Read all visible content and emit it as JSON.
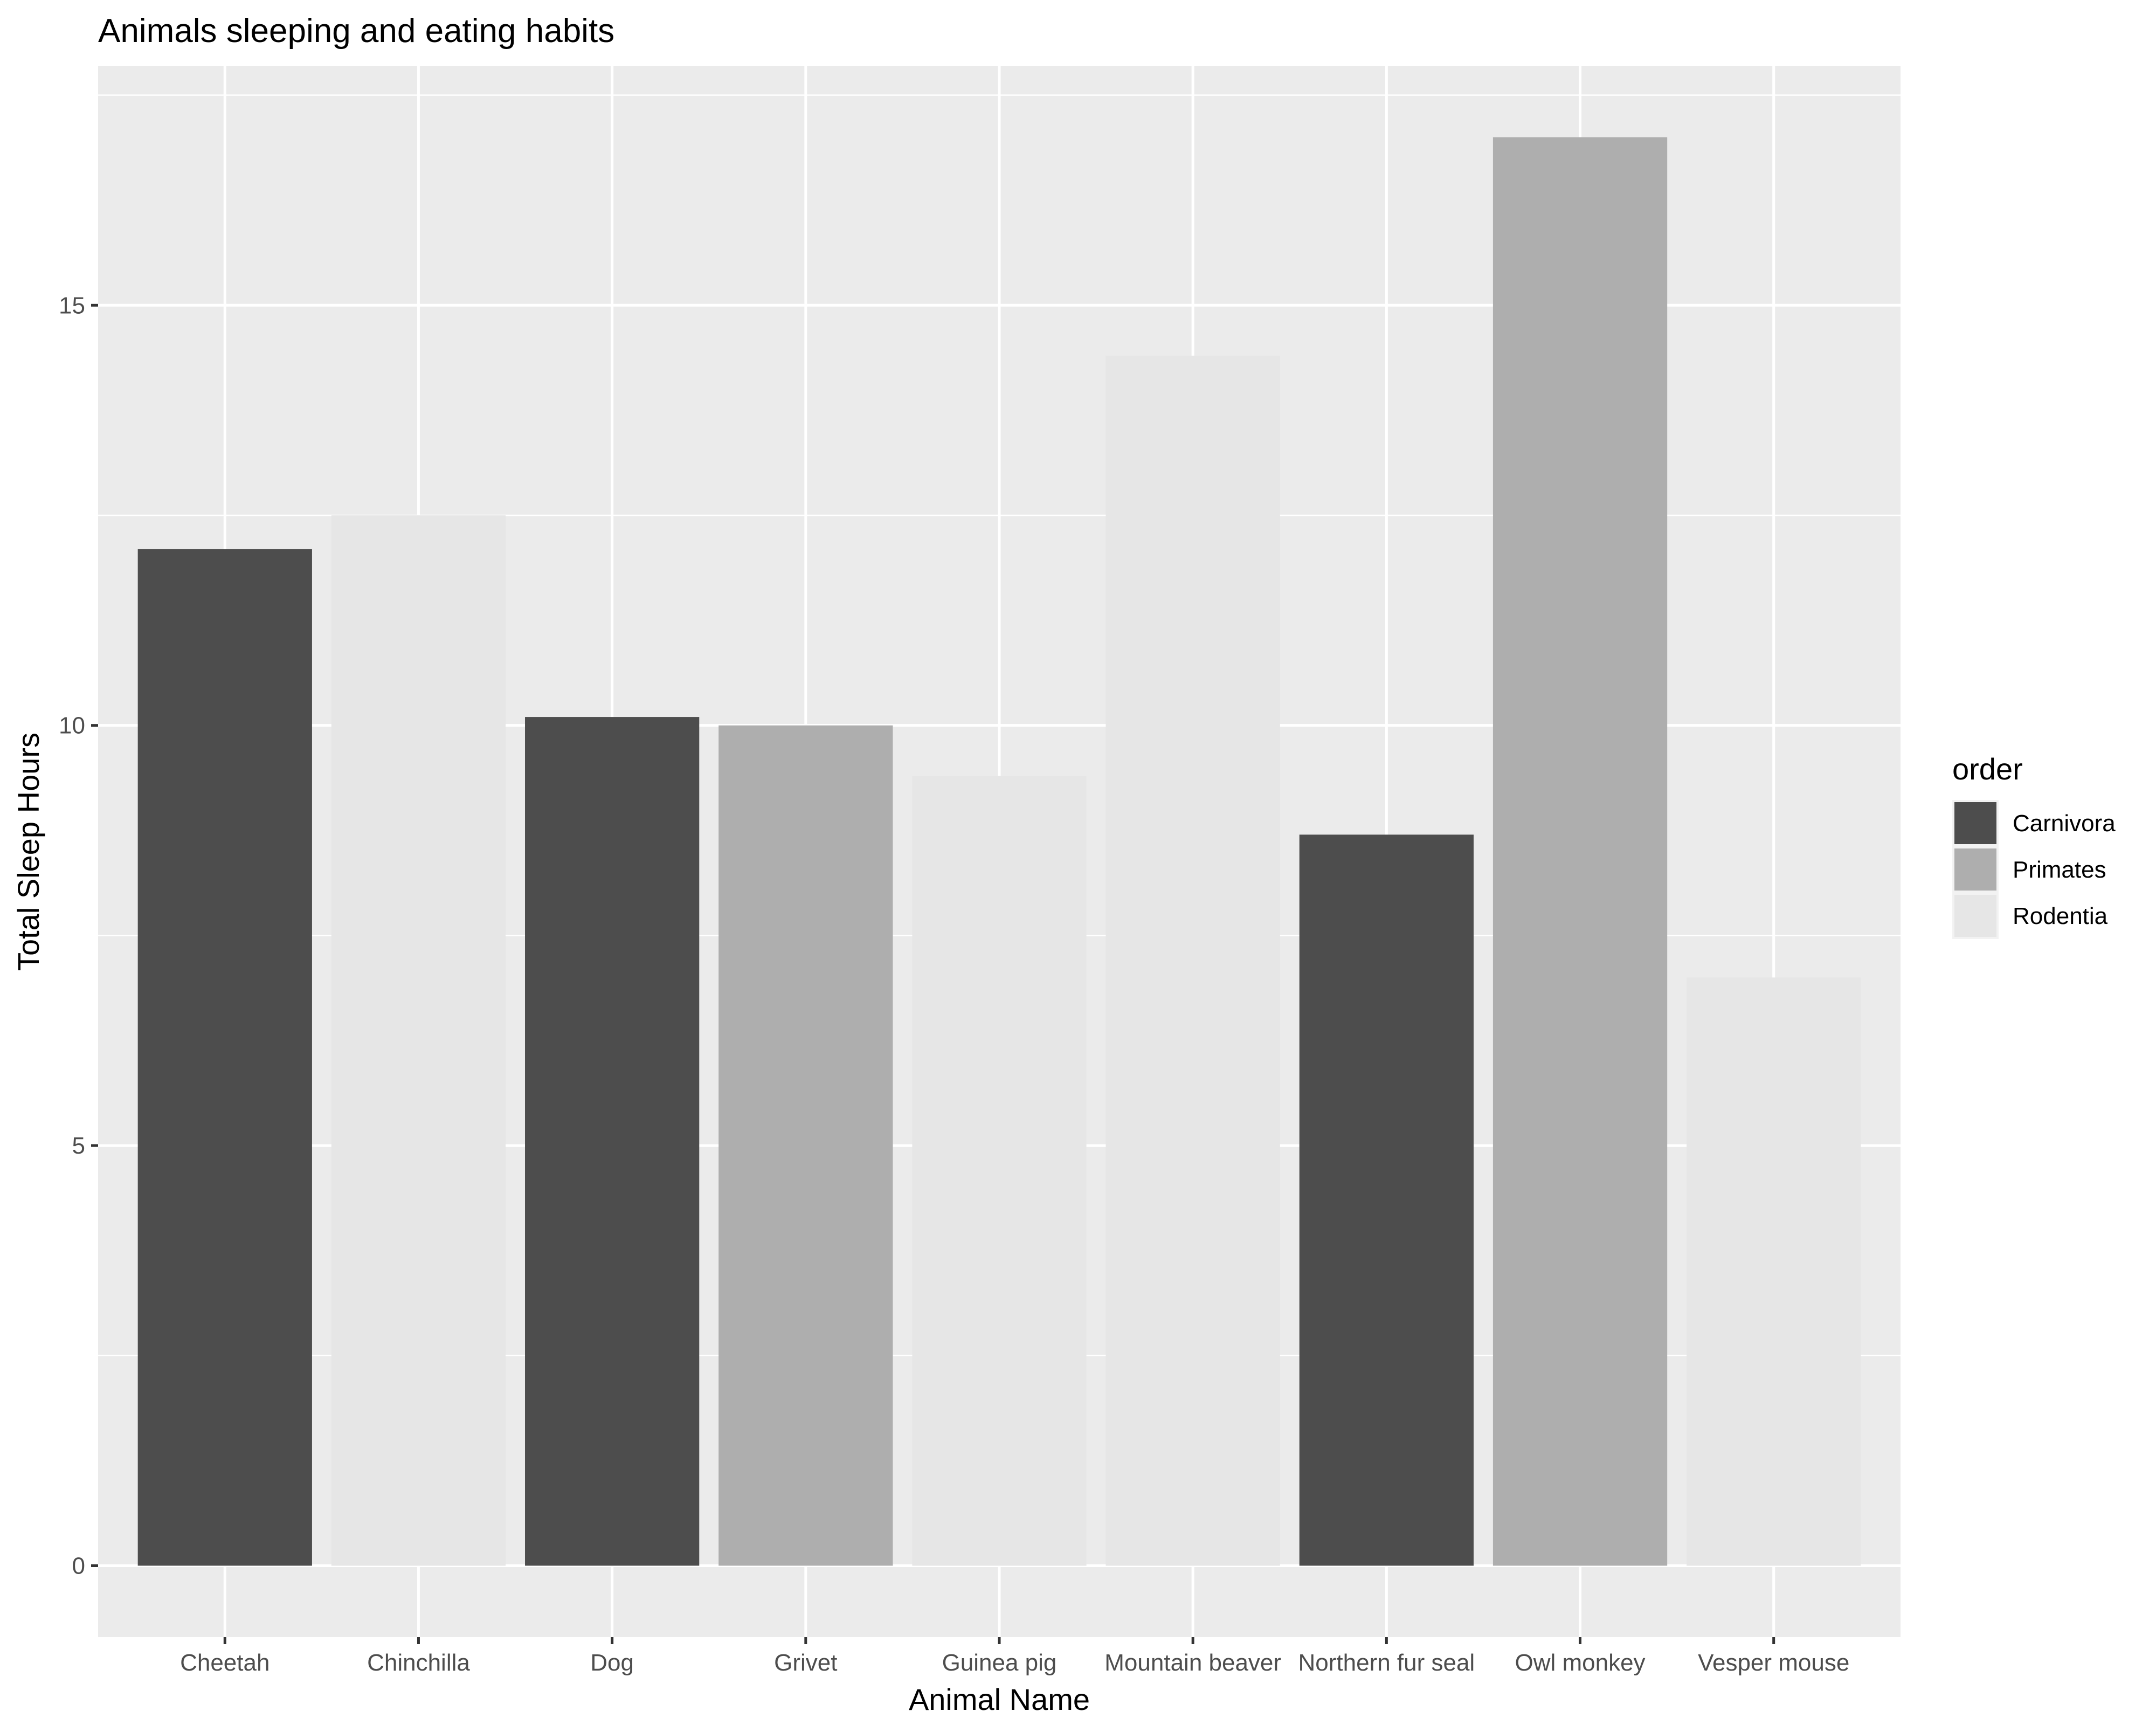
{
  "chart_data": {
    "type": "bar",
    "title": "Animals sleeping and eating habits",
    "xlabel": "Animal Name",
    "ylabel": "Total Sleep Hours",
    "categories": [
      "Cheetah",
      "Chinchilla",
      "Dog",
      "Grivet",
      "Guinea pig",
      "Mountain beaver",
      "Northern fur seal",
      "Owl monkey",
      "Vesper mouse"
    ],
    "values": [
      12.1,
      12.5,
      10.1,
      10.0,
      9.4,
      14.4,
      8.7,
      17.0,
      7.0
    ],
    "groups": [
      "Carnivora",
      "Rodentia",
      "Carnivora",
      "Primates",
      "Rodentia",
      "Rodentia",
      "Carnivora",
      "Primates",
      "Rodentia"
    ],
    "ylim": [
      -0.85,
      17.85
    ],
    "yticks": [
      0,
      5,
      10,
      15
    ],
    "ytick_labels": [
      "0",
      "5",
      "10",
      "15"
    ],
    "grid": true,
    "legend": {
      "title": "order",
      "position": "right",
      "entries": [
        {
          "label": "Carnivora",
          "color": "#4d4d4d"
        },
        {
          "label": "Primates",
          "color": "#aeaeae"
        },
        {
          "label": "Rodentia",
          "color": "#e6e6e6"
        }
      ]
    },
    "colors": {
      "Carnivora": "#4d4d4d",
      "Primates": "#aeaeae",
      "Rodentia": "#e6e6e6",
      "panel_background": "#ebebeb",
      "grid": "#ffffff"
    }
  }
}
